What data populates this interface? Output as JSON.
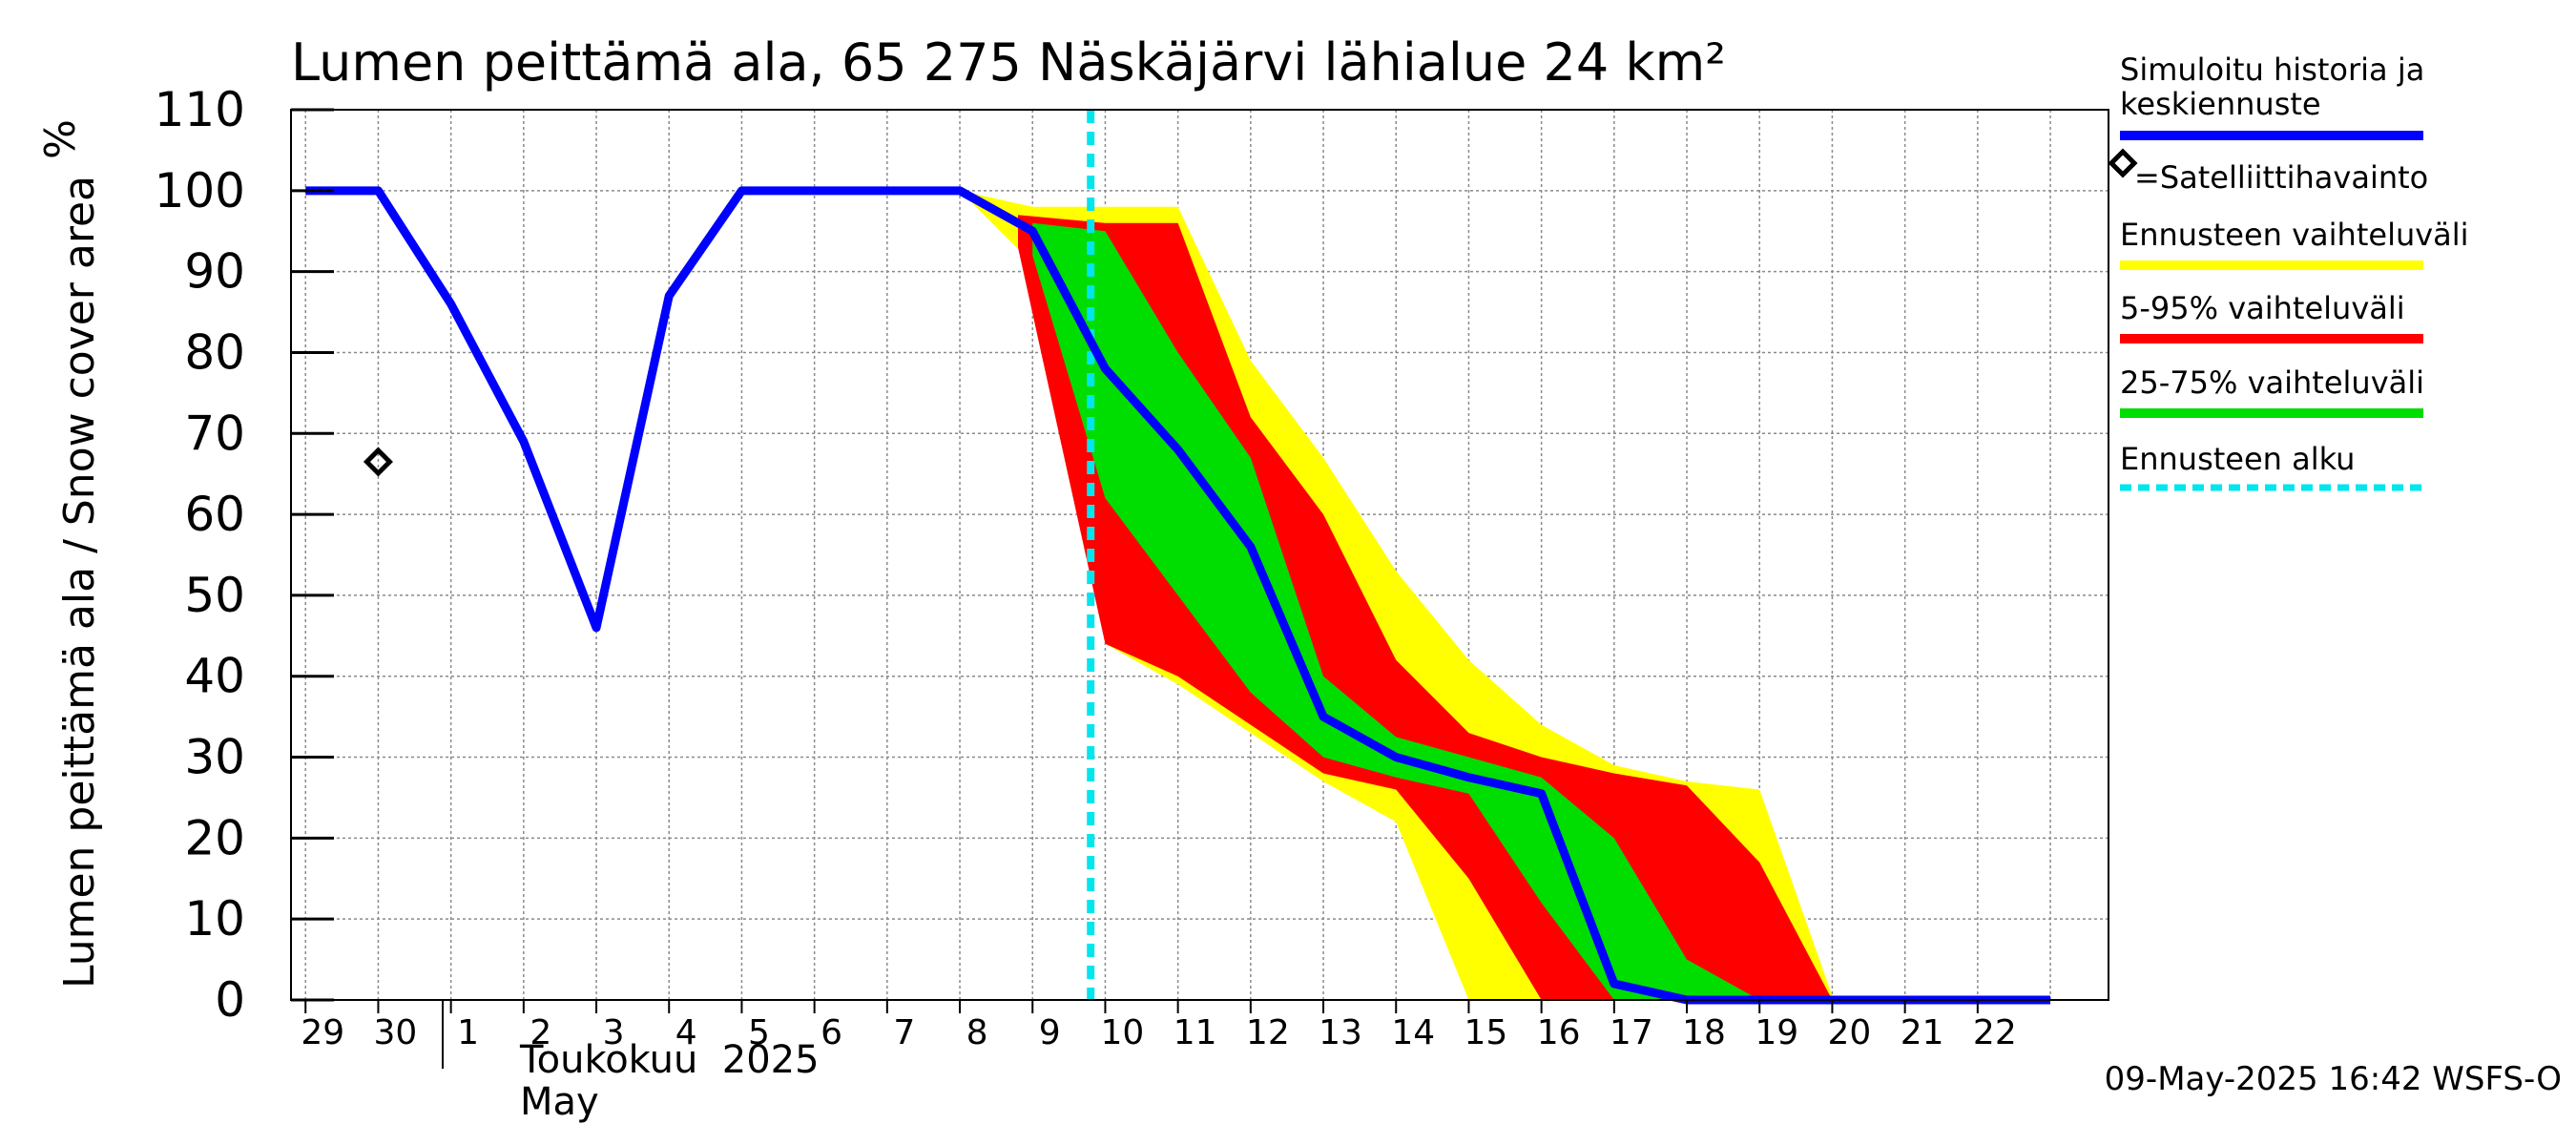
{
  "chart_data": {
    "type": "area",
    "title": "Lumen peittämä ala, 65 275 Näskäjärvi lähialue 24 km²",
    "ylabel": "Lumen peittämä ala / Snow cover area",
    "yunit": "%",
    "ylim": [
      0,
      110
    ],
    "yticks": [
      0,
      10,
      20,
      30,
      40,
      50,
      60,
      70,
      80,
      90,
      100,
      110
    ],
    "x_day_labels": [
      "29",
      "30",
      "1",
      "2",
      "3",
      "4",
      "5",
      "6",
      "7",
      "8",
      "9",
      "10",
      "11",
      "12",
      "13",
      "14",
      "15",
      "16",
      "17",
      "18",
      "19",
      "20",
      "21",
      "22"
    ],
    "x_month_label_fi": "Toukokuu  2025",
    "x_month_label_en": "May",
    "grid": true,
    "legend_position": "right",
    "forecast_start_x": 9.8,
    "series": [
      {
        "name": "Simuloitu historia ja keskiennuste",
        "color": "#0000ff",
        "x": [
          -1,
          0,
          1,
          2,
          3,
          4,
          5,
          6,
          7,
          8,
          9,
          10,
          11,
          12,
          13,
          14,
          15,
          16,
          17,
          18,
          19,
          20,
          21,
          22,
          23
        ],
        "y": [
          100,
          100,
          86,
          69,
          46,
          87,
          100,
          100,
          100,
          100,
          95,
          78,
          68,
          56,
          35,
          30,
          27.5,
          25.5,
          2,
          0,
          0,
          0,
          0,
          0,
          0
        ]
      }
    ],
    "bands": [
      {
        "name": "Ennusteen vaihteluväli",
        "color": "#ffff00",
        "x": [
          8,
          9,
          10,
          11,
          12,
          13,
          14,
          15,
          16,
          17,
          18,
          19,
          20
        ],
        "upper": [
          100,
          98,
          98,
          98,
          79,
          67,
          53,
          42,
          34,
          29,
          27,
          26,
          0.5
        ],
        "lower": [
          100,
          91,
          44,
          39,
          33,
          27,
          22,
          0,
          0,
          0,
          0,
          0,
          0
        ]
      },
      {
        "name": "5-95% vaihteluväli",
        "color": "#ff0000",
        "x": [
          8.8,
          10,
          11,
          12,
          13,
          14,
          15,
          16,
          17,
          18,
          19,
          20
        ],
        "upper": [
          97,
          96,
          96,
          72,
          60,
          42,
          33,
          30,
          28,
          26.5,
          17,
          0
        ],
        "lower": [
          93,
          44,
          40,
          34,
          28,
          26,
          15,
          0,
          0,
          0,
          0,
          0
        ]
      },
      {
        "name": "25-75% vaihteluväli",
        "color": "#00dd00",
        "x": [
          9,
          10,
          11,
          12,
          13,
          14,
          15,
          16,
          17,
          18,
          19
        ],
        "upper": [
          96,
          95,
          80,
          67,
          40,
          32.5,
          30,
          27.5,
          20,
          5,
          0
        ],
        "lower": [
          92,
          62,
          50,
          38,
          30,
          27.5,
          25.5,
          12,
          0,
          0,
          0
        ]
      }
    ],
    "observations": {
      "name": "=Satelliittihavainto",
      "x": [
        0
      ],
      "y": [
        66.5
      ]
    }
  },
  "legend": [
    {
      "label": "Simuloitu historia ja keskiennuste",
      "color": "#0000ff",
      "style": "line"
    },
    {
      "label": "=Satelliittihavainto",
      "color": "#000000",
      "style": "diamond"
    },
    {
      "label": "Ennusteen vaihteluväli",
      "color": "#ffff00",
      "style": "line"
    },
    {
      "label": "5-95% vaihteluväli",
      "color": "#ff0000",
      "style": "line"
    },
    {
      "label": "25-75% vaihteluväli",
      "color": "#00dd00",
      "style": "line"
    },
    {
      "label": "Ennusteen alku",
      "color": "#00e5ee",
      "style": "dashed"
    }
  ],
  "footer": "09-May-2025 16:42 WSFS-O"
}
